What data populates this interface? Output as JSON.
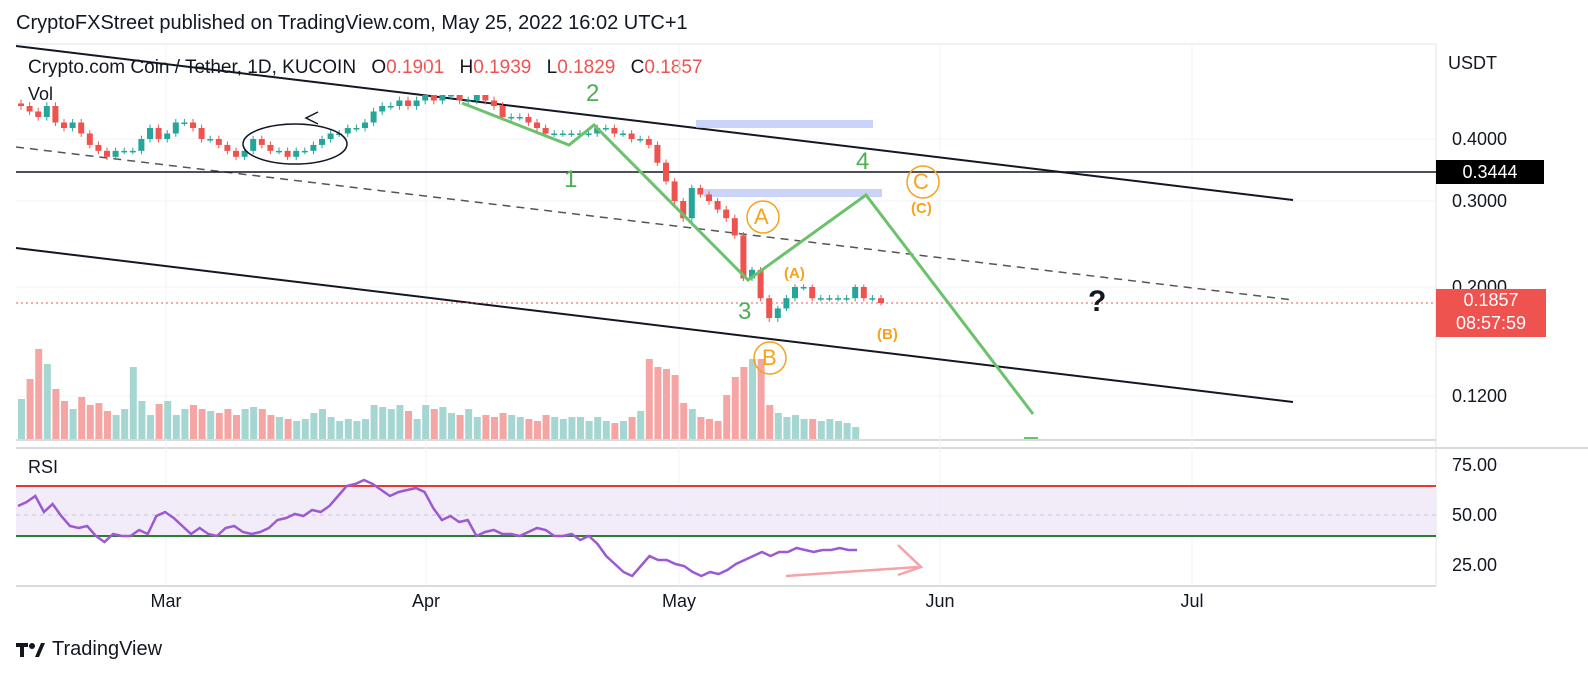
{
  "header": "CryptoFXStreet published on TradingView.com, May 25, 2022 16:02 UTC+1",
  "symbol": {
    "name": "Crypto.com Coin / Tether, 1D, KUCOIN",
    "open_label": "O",
    "open": "0.1901",
    "high_label": "H",
    "high": "0.1939",
    "low_label": "L",
    "low": "0.1829",
    "close_label": "C",
    "close": "0.1857"
  },
  "vol_label": "Vol",
  "rsi_label": "RSI",
  "currency": "USDT",
  "footer_brand": "TradingView",
  "price_tags": {
    "level": "0.3444",
    "last": "0.1857",
    "countdown": "08:57:59"
  },
  "annotations": {
    "wave1": "1",
    "wave2": "2",
    "wave3": "3",
    "wave4": "4",
    "waveA": "A",
    "waveB": "B",
    "waveC": "C",
    "subA": "(A)",
    "subB": "(B)",
    "subC": "(C)",
    "question": "?"
  },
  "colors": {
    "up": "#26a69a",
    "down": "#ef5350",
    "wave": "#6cc26c",
    "orange": "#f7a21b",
    "rsi": "#9c59d1",
    "rsi_upper": "#e53935",
    "rsi_lower": "#2e7d32",
    "zone": "#b3c1f5"
  },
  "chart_data": [
    {
      "type": "candlestick",
      "y_ticks": [
        "0.4000",
        "0.3000",
        "0.2000",
        "0.1200"
      ],
      "x_ticks": [
        "Mar",
        "Apr",
        "May",
        "Jun",
        "Jul"
      ],
      "horizontal_level": 0.3444,
      "last_price": 0.1857,
      "closes": [
        0.46,
        0.45,
        0.44,
        0.46,
        0.43,
        0.42,
        0.43,
        0.41,
        0.39,
        0.38,
        0.37,
        0.38,
        0.38,
        0.38,
        0.4,
        0.42,
        0.4,
        0.41,
        0.43,
        0.43,
        0.42,
        0.4,
        0.4,
        0.39,
        0.38,
        0.37,
        0.38,
        0.4,
        0.39,
        0.38,
        0.38,
        0.37,
        0.38,
        0.38,
        0.39,
        0.4,
        0.41,
        0.41,
        0.42,
        0.42,
        0.43,
        0.45,
        0.46,
        0.46,
        0.47,
        0.46,
        0.47,
        0.48,
        0.47,
        0.48,
        0.48,
        0.47,
        0.47,
        0.48,
        0.47,
        0.46,
        0.44,
        0.44,
        0.44,
        0.43,
        0.42,
        0.41,
        0.41,
        0.41,
        0.41,
        0.41,
        0.41,
        0.42,
        0.42,
        0.41,
        0.41,
        0.4,
        0.4,
        0.39,
        0.36,
        0.33,
        0.3,
        0.28,
        0.32,
        0.31,
        0.3,
        0.29,
        0.28,
        0.26,
        0.21,
        0.22,
        0.19,
        0.17,
        0.18,
        0.19,
        0.2,
        0.2,
        0.19,
        0.19,
        0.19,
        0.19,
        0.19,
        0.2,
        0.19,
        0.19,
        0.1857
      ]
    },
    {
      "type": "bar",
      "name": "Vol",
      "values": [
        40,
        60,
        90,
        75,
        50,
        38,
        30,
        42,
        34,
        36,
        28,
        24,
        30,
        72,
        38,
        24,
        35,
        38,
        24,
        30,
        34,
        30,
        28,
        26,
        30,
        24,
        30,
        32,
        30,
        24,
        22,
        20,
        18,
        20,
        26,
        30,
        22,
        18,
        20,
        18,
        20,
        34,
        32,
        30,
        34,
        28,
        20,
        34,
        30,
        32,
        26,
        24,
        30,
        22,
        24,
        22,
        26,
        24,
        22,
        20,
        18,
        24,
        22,
        20,
        22,
        22,
        18,
        22,
        18,
        16,
        18,
        22,
        28,
        80,
        72,
        70,
        64,
        36,
        30,
        22,
        20,
        18,
        44,
        62,
        72,
        80,
        80,
        34,
        26,
        22,
        24,
        20,
        20,
        18,
        20,
        18,
        16,
        12
      ]
    },
    {
      "type": "line",
      "name": "RSI",
      "ticks": [
        "75.00",
        "50.00",
        "25.00"
      ],
      "upper": 65,
      "lower": 40,
      "values": [
        55,
        57,
        60,
        52,
        56,
        50,
        45,
        44,
        45,
        40,
        37,
        41,
        40,
        40,
        43,
        41,
        50,
        52,
        49,
        45,
        41,
        44,
        41,
        40,
        44,
        45,
        42,
        41,
        42,
        44,
        48,
        49,
        51,
        50,
        53,
        52,
        55,
        60,
        65,
        66,
        68,
        66,
        63,
        60,
        62,
        63,
        64,
        62,
        54,
        48,
        50,
        47,
        48,
        40,
        42,
        43,
        41,
        41,
        40,
        42,
        44,
        43,
        40,
        40,
        41,
        38,
        40,
        36,
        30,
        26,
        22,
        20,
        25,
        30,
        28,
        28,
        26,
        25,
        22,
        20,
        22,
        21,
        23,
        26,
        28,
        30,
        32,
        30,
        32,
        32,
        34,
        33,
        32,
        33,
        33,
        34,
        33,
        33
      ]
    }
  ]
}
